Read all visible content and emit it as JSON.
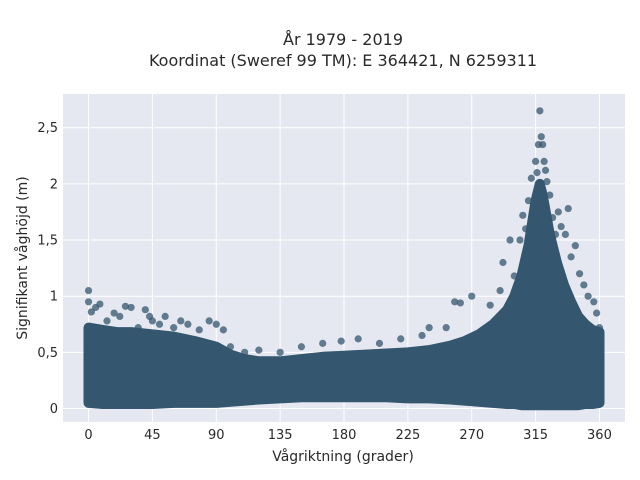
{
  "chart_data": {
    "type": "scatter",
    "title": "År 1979 - 2019",
    "subtitle": "Koordinat (Sweref 99 TM): E 364421, N 6259311",
    "xlabel": "Vågriktning (grader)",
    "ylabel": "Signifikant våghöjd (m)",
    "xlim": [
      -18,
      378
    ],
    "ylim": [
      -0.12,
      2.8
    ],
    "xticks": [
      0,
      45,
      90,
      135,
      180,
      225,
      270,
      315,
      360
    ],
    "xtick_labels": [
      "0",
      "45",
      "90",
      "135",
      "180",
      "225",
      "270",
      "315",
      "360"
    ],
    "yticks": [
      0,
      0.5,
      1,
      1.5,
      2,
      2.5
    ],
    "ytick_labels": [
      "0",
      "0,5",
      "1",
      "1,5",
      "2",
      "2,5"
    ],
    "grid": true,
    "legend": "none",
    "colors": {
      "marker": "#34566e",
      "plot_bg": "#e5e8f0",
      "grid": "#ffffff",
      "text": "#2a2a2a"
    },
    "series": [
      {
        "values": [
          {
            "x": 0,
            "y": 1.05
          },
          {
            "x": 0,
            "y": 0.95
          },
          {
            "x": 2,
            "y": 0.86
          },
          {
            "x": 5,
            "y": 0.9
          },
          {
            "x": 8,
            "y": 0.93
          },
          {
            "x": 13,
            "y": 0.78
          },
          {
            "x": 18,
            "y": 0.85
          },
          {
            "x": 22,
            "y": 0.82
          },
          {
            "x": 26,
            "y": 0.91
          },
          {
            "x": 30,
            "y": 0.9
          },
          {
            "x": 35,
            "y": 0.72
          },
          {
            "x": 40,
            "y": 0.88
          },
          {
            "x": 43,
            "y": 0.82
          },
          {
            "x": 45,
            "y": 0.78
          },
          {
            "x": 50,
            "y": 0.75
          },
          {
            "x": 54,
            "y": 0.82
          },
          {
            "x": 60,
            "y": 0.72
          },
          {
            "x": 65,
            "y": 0.78
          },
          {
            "x": 70,
            "y": 0.75
          },
          {
            "x": 78,
            "y": 0.7
          },
          {
            "x": 85,
            "y": 0.78
          },
          {
            "x": 90,
            "y": 0.75
          },
          {
            "x": 95,
            "y": 0.7
          },
          {
            "x": 100,
            "y": 0.55
          },
          {
            "x": 110,
            "y": 0.5
          },
          {
            "x": 120,
            "y": 0.52
          },
          {
            "x": 135,
            "y": 0.5
          },
          {
            "x": 150,
            "y": 0.55
          },
          {
            "x": 165,
            "y": 0.58
          },
          {
            "x": 178,
            "y": 0.6
          },
          {
            "x": 190,
            "y": 0.62
          },
          {
            "x": 205,
            "y": 0.58
          },
          {
            "x": 220,
            "y": 0.62
          },
          {
            "x": 235,
            "y": 0.65
          },
          {
            "x": 240,
            "y": 0.72
          },
          {
            "x": 252,
            "y": 0.72
          },
          {
            "x": 258,
            "y": 0.95
          },
          {
            "x": 262,
            "y": 0.94
          },
          {
            "x": 270,
            "y": 1.0
          },
          {
            "x": 283,
            "y": 0.92
          },
          {
            "x": 290,
            "y": 1.05
          },
          {
            "x": 292,
            "y": 1.3
          },
          {
            "x": 297,
            "y": 1.5
          },
          {
            "x": 300,
            "y": 1.18
          },
          {
            "x": 304,
            "y": 1.5
          },
          {
            "x": 306,
            "y": 1.72
          },
          {
            "x": 308,
            "y": 1.6
          },
          {
            "x": 310,
            "y": 1.85
          },
          {
            "x": 312,
            "y": 2.05
          },
          {
            "x": 313,
            "y": 1.72
          },
          {
            "x": 315,
            "y": 2.2
          },
          {
            "x": 316,
            "y": 2.1
          },
          {
            "x": 317,
            "y": 2.35
          },
          {
            "x": 318,
            "y": 2.65
          },
          {
            "x": 319,
            "y": 2.42
          },
          {
            "x": 320,
            "y": 2.35
          },
          {
            "x": 321,
            "y": 2.2
          },
          {
            "x": 322,
            "y": 2.12
          },
          {
            "x": 323,
            "y": 2.02
          },
          {
            "x": 325,
            "y": 1.9
          },
          {
            "x": 327,
            "y": 1.7
          },
          {
            "x": 329,
            "y": 1.55
          },
          {
            "x": 331,
            "y": 1.75
          },
          {
            "x": 333,
            "y": 1.62
          },
          {
            "x": 336,
            "y": 1.55
          },
          {
            "x": 338,
            "y": 1.78
          },
          {
            "x": 340,
            "y": 1.35
          },
          {
            "x": 343,
            "y": 1.45
          },
          {
            "x": 346,
            "y": 1.2
          },
          {
            "x": 349,
            "y": 1.1
          },
          {
            "x": 352,
            "y": 1.0
          },
          {
            "x": 356,
            "y": 0.95
          },
          {
            "x": 358,
            "y": 0.85
          },
          {
            "x": 360,
            "y": 0.72
          }
        ]
      }
    ],
    "density_envelope": {
      "x": [
        0,
        10,
        20,
        30,
        45,
        60,
        75,
        90,
        100,
        110,
        120,
        135,
        150,
        165,
        180,
        195,
        210,
        225,
        240,
        255,
        265,
        275,
        285,
        295,
        300,
        305,
        310,
        315,
        318,
        320,
        325,
        330,
        335,
        340,
        345,
        350,
        355,
        360
      ],
      "lower": [
        0.05,
        0.04,
        0.04,
        0.04,
        0.04,
        0.05,
        0.05,
        0.05,
        0.06,
        0.07,
        0.08,
        0.09,
        0.1,
        0.1,
        0.1,
        0.1,
        0.1,
        0.09,
        0.09,
        0.08,
        0.07,
        0.06,
        0.05,
        0.04,
        0.04,
        0.03,
        0.03,
        0.03,
        0.03,
        0.03,
        0.03,
        0.03,
        0.03,
        0.03,
        0.03,
        0.04,
        0.04,
        0.05
      ],
      "upper": [
        0.72,
        0.7,
        0.68,
        0.68,
        0.66,
        0.64,
        0.6,
        0.55,
        0.48,
        0.44,
        0.42,
        0.42,
        0.44,
        0.46,
        0.47,
        0.48,
        0.49,
        0.5,
        0.52,
        0.56,
        0.6,
        0.66,
        0.75,
        0.88,
        1.0,
        1.18,
        1.45,
        1.85,
        2.0,
        1.9,
        1.55,
        1.3,
        1.1,
        0.95,
        0.82,
        0.75,
        0.7,
        0.68
      ]
    }
  }
}
